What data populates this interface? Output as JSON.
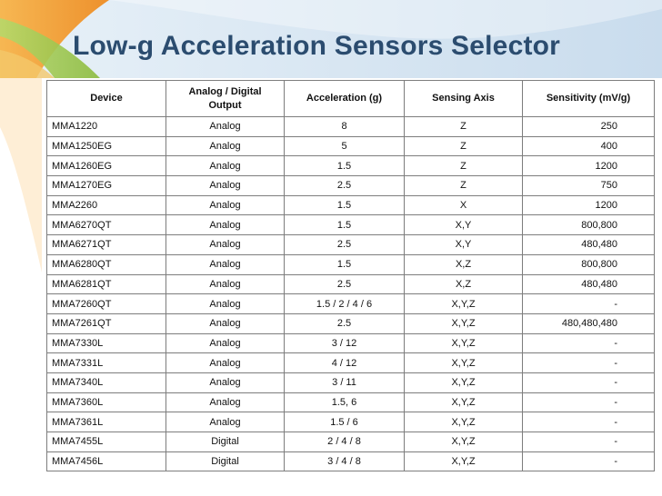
{
  "slide": {
    "title": "Low-g Acceleration Sensors Selector"
  },
  "table": {
    "headers": [
      "Device",
      "Analog / Digital Output",
      "Acceleration (g)",
      "Sensing Axis",
      "Sensitivity (mV/g)"
    ],
    "rows": [
      [
        "MMA1220",
        "Analog",
        "8",
        "Z",
        "250"
      ],
      [
        "MMA1250EG",
        "Analog",
        "5",
        "Z",
        "400"
      ],
      [
        "MMA1260EG",
        "Analog",
        "1.5",
        "Z",
        "1200"
      ],
      [
        "MMA1270EG",
        "Analog",
        "2.5",
        "Z",
        "750"
      ],
      [
        "MMA2260",
        "Analog",
        "1.5",
        "X",
        "1200"
      ],
      [
        "MMA6270QT",
        "Analog",
        "1.5",
        "X,Y",
        "800,800"
      ],
      [
        "MMA6271QT",
        "Analog",
        "2.5",
        "X,Y",
        "480,480"
      ],
      [
        "MMA6280QT",
        "Analog",
        "1.5",
        "X,Z",
        "800,800"
      ],
      [
        "MMA6281QT",
        "Analog",
        "2.5",
        "X,Z",
        "480,480"
      ],
      [
        "MMA7260QT",
        "Analog",
        "1.5 / 2 / 4 / 6",
        "X,Y,Z",
        "-"
      ],
      [
        "MMA7261QT",
        "Analog",
        "2.5",
        "X,Y,Z",
        "480,480,480"
      ],
      [
        "MMA7330L",
        "Analog",
        "3 / 12",
        "X,Y,Z",
        "-"
      ],
      [
        "MMA7331L",
        "Analog",
        "4 / 12",
        "X,Y,Z",
        "-"
      ],
      [
        "MMA7340L",
        "Analog",
        "3 / 11",
        "X,Y,Z",
        "-"
      ],
      [
        "MMA7360L",
        "Analog",
        "1.5, 6",
        "X,Y,Z",
        "-"
      ],
      [
        "MMA7361L",
        "Analog",
        "1.5 / 6",
        "X,Y,Z",
        "-"
      ],
      [
        "MMA7455L",
        "Digital",
        "2 / 4 / 8",
        "X,Y,Z",
        "-"
      ],
      [
        "MMA7456L",
        "Digital",
        "3 / 4 / 8",
        "X,Y,Z",
        "-"
      ]
    ]
  },
  "colors": {
    "title": "#2b4c6f",
    "border": "#7d7d7d",
    "background_blue": "#d7e8f6",
    "swoosh_orange": "#f2a33a",
    "swoosh_green": "#9bc84e"
  }
}
